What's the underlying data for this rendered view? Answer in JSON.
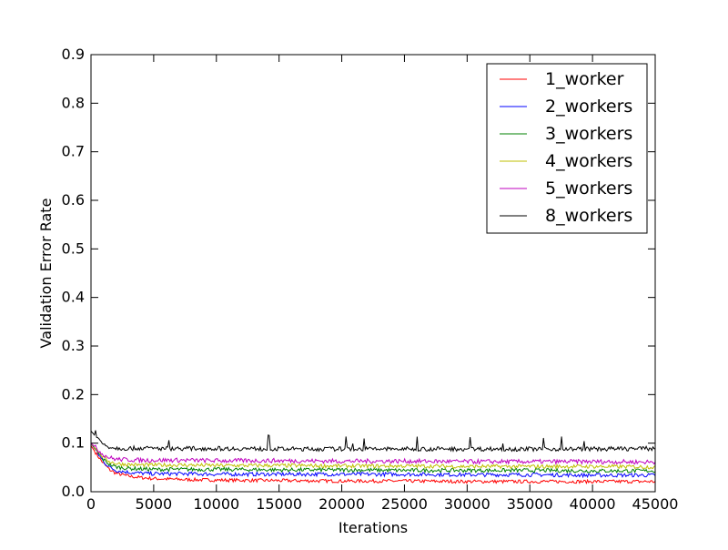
{
  "chart_data": {
    "type": "line",
    "title": "",
    "xlabel": "Iterations",
    "ylabel": "Validation Error Rate",
    "xlim": [
      0,
      45000
    ],
    "ylim": [
      0,
      0.9
    ],
    "xticks": [
      0,
      5000,
      10000,
      15000,
      20000,
      25000,
      30000,
      35000,
      40000,
      45000
    ],
    "yticks": [
      0.0,
      0.1,
      0.2,
      0.3,
      0.4,
      0.5,
      0.6,
      0.7,
      0.8,
      0.9
    ],
    "xtick_labels": [
      "0",
      "5000",
      "10000",
      "15000",
      "20000",
      "25000",
      "30000",
      "35000",
      "40000",
      "45000"
    ],
    "ytick_labels": [
      "0.0",
      "0.1",
      "0.2",
      "0.3",
      "0.4",
      "0.5",
      "0.6",
      "0.7",
      "0.8",
      "0.9"
    ],
    "grid": false,
    "legend_position": "top-right",
    "series": [
      {
        "name": "1_worker",
        "color": "#ff0000",
        "x": [
          0,
          500,
          1000,
          1500,
          2000,
          3000,
          4000,
          5000,
          7500,
          10000,
          15000,
          20000,
          25000,
          30000,
          35000,
          40000,
          45000
        ],
        "y": [
          0.095,
          0.075,
          0.058,
          0.045,
          0.038,
          0.032,
          0.029,
          0.027,
          0.025,
          0.024,
          0.023,
          0.022,
          0.022,
          0.021,
          0.021,
          0.021,
          0.021
        ]
      },
      {
        "name": "2_workers",
        "color": "#0000ff",
        "x": [
          0,
          500,
          1000,
          1500,
          2000,
          3000,
          4000,
          5000,
          7500,
          10000,
          15000,
          20000,
          25000,
          30000,
          35000,
          40000,
          45000
        ],
        "y": [
          0.1,
          0.08,
          0.062,
          0.05,
          0.044,
          0.04,
          0.038,
          0.037,
          0.037,
          0.036,
          0.036,
          0.036,
          0.036,
          0.035,
          0.035,
          0.034,
          0.034
        ]
      },
      {
        "name": "3_workers",
        "color": "#008000",
        "x": [
          0,
          500,
          1000,
          1500,
          2000,
          3000,
          4000,
          5000,
          7500,
          10000,
          15000,
          20000,
          25000,
          30000,
          35000,
          40000,
          45000
        ],
        "y": [
          0.1,
          0.082,
          0.066,
          0.056,
          0.051,
          0.048,
          0.047,
          0.046,
          0.046,
          0.046,
          0.045,
          0.045,
          0.044,
          0.044,
          0.044,
          0.043,
          0.043
        ]
      },
      {
        "name": "4_workers",
        "color": "#bfbf00",
        "x": [
          0,
          500,
          1000,
          1500,
          2000,
          3000,
          4000,
          5000,
          7500,
          10000,
          15000,
          20000,
          25000,
          30000,
          35000,
          40000,
          45000
        ],
        "y": [
          0.1,
          0.085,
          0.07,
          0.062,
          0.058,
          0.056,
          0.055,
          0.055,
          0.055,
          0.054,
          0.054,
          0.053,
          0.053,
          0.052,
          0.052,
          0.052,
          0.051
        ]
      },
      {
        "name": "5_workers",
        "color": "#bf00bf",
        "x": [
          0,
          500,
          1000,
          1500,
          2000,
          3000,
          4000,
          5000,
          7500,
          10000,
          15000,
          20000,
          25000,
          30000,
          35000,
          40000,
          45000
        ],
        "y": [
          0.1,
          0.088,
          0.076,
          0.07,
          0.067,
          0.066,
          0.065,
          0.065,
          0.065,
          0.064,
          0.064,
          0.063,
          0.063,
          0.062,
          0.062,
          0.062,
          0.061
        ]
      },
      {
        "name": "8_workers",
        "color": "#000000",
        "x": [
          0,
          500,
          1000,
          1500,
          2000,
          3000,
          4000,
          5000,
          7500,
          10000,
          15000,
          20000,
          25000,
          30000,
          35000,
          40000,
          45000
        ],
        "y": [
          0.125,
          0.11,
          0.098,
          0.092,
          0.09,
          0.089,
          0.09,
          0.089,
          0.089,
          0.089,
          0.088,
          0.088,
          0.088,
          0.088,
          0.088,
          0.088,
          0.089
        ]
      }
    ]
  }
}
